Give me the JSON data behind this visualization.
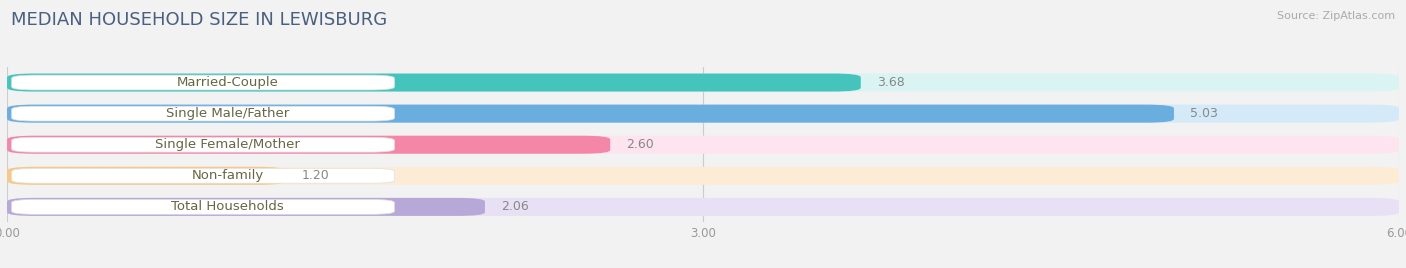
{
  "title": "MEDIAN HOUSEHOLD SIZE IN LEWISBURG",
  "source": "Source: ZipAtlas.com",
  "categories": [
    "Married-Couple",
    "Single Male/Father",
    "Single Female/Mother",
    "Non-family",
    "Total Households"
  ],
  "values": [
    3.68,
    5.03,
    2.6,
    1.2,
    2.06
  ],
  "bar_colors": [
    "#45c4be",
    "#6aaee0",
    "#f487a8",
    "#f5c98a",
    "#b8a8d8"
  ],
  "bar_bg_colors": [
    "#daf4f3",
    "#d5eaf8",
    "#fde4ee",
    "#fdecd5",
    "#e8e0f5"
  ],
  "label_bg_color": "#f8f8f8",
  "label_text_color": "#666644",
  "xlim": [
    0,
    6.0
  ],
  "xticks": [
    0.0,
    3.0,
    6.0
  ],
  "xtick_labels": [
    "0.00",
    "3.00",
    "6.00"
  ],
  "title_color": "#4a6080",
  "source_color": "#aaaaaa",
  "value_fontsize": 9,
  "label_fontsize": 9.5,
  "title_fontsize": 13,
  "bar_height": 0.58,
  "fig_bg_color": "#f2f2f2"
}
